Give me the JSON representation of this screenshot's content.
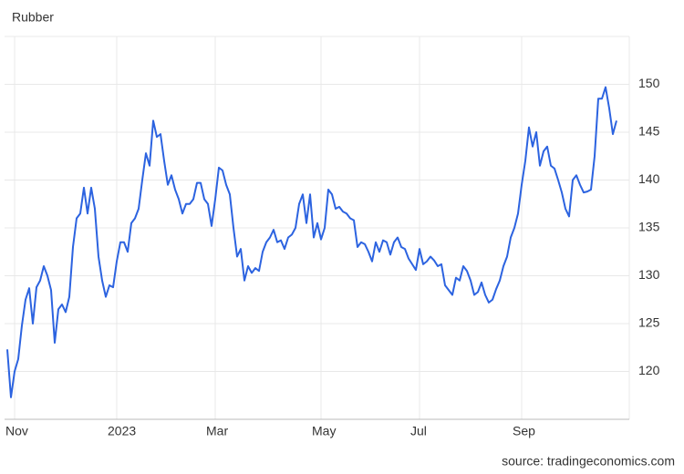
{
  "chart_data": {
    "type": "line",
    "title": "Rubber",
    "source": "source: tradingeconomics.com",
    "categories": [
      null,
      null,
      "Nov",
      null,
      null,
      null,
      null,
      null,
      null,
      null,
      null,
      null,
      null,
      null,
      null,
      null,
      null,
      null,
      null,
      null,
      null,
      null,
      null,
      null,
      null,
      null,
      null,
      null,
      null,
      null,
      "2023",
      null,
      null,
      null,
      null,
      null,
      null,
      null,
      null,
      null,
      null,
      null,
      null,
      null,
      null,
      null,
      null,
      null,
      null,
      null,
      null,
      null,
      null,
      null,
      null,
      null,
      null,
      "Mar",
      null,
      null,
      null,
      null,
      null,
      null,
      null,
      null,
      null,
      null,
      null,
      null,
      null,
      null,
      null,
      null,
      null,
      null,
      null,
      null,
      null,
      null,
      null,
      null,
      null,
      null,
      null,
      null,
      "May",
      null,
      null,
      null,
      null,
      null,
      null,
      null,
      null,
      null,
      null,
      null,
      null,
      null,
      null,
      null,
      null,
      null,
      null,
      null,
      null,
      null,
      null,
      null,
      null,
      null,
      null,
      "Jul",
      null,
      null,
      null,
      null,
      null,
      null,
      null,
      null,
      null,
      null,
      null,
      null,
      null,
      null,
      null,
      null,
      null,
      null,
      null,
      null,
      null,
      null,
      null,
      null,
      null,
      null,
      null,
      "Sep",
      null,
      null,
      null,
      null,
      null,
      null,
      null,
      null,
      null,
      null,
      null,
      null,
      null,
      null,
      null,
      null,
      null,
      null,
      null,
      null,
      null,
      null,
      null,
      null,
      null,
      null
    ],
    "series": [
      {
        "name": "Rubber",
        "color": "#2c63e0",
        "values": [
          122.3,
          117.3,
          120,
          121.3,
          124.8,
          127.5,
          128.7,
          125,
          128.8,
          129.5,
          131,
          130,
          128.5,
          123,
          126.5,
          127,
          126.2,
          127.8,
          133,
          136,
          136.5,
          139.2,
          136.5,
          139.2,
          137,
          132,
          129.5,
          127.8,
          129,
          128.8,
          131.5,
          133.5,
          133.5,
          132.5,
          135.5,
          136,
          137,
          140,
          142.8,
          141.5,
          146.2,
          144.5,
          144.8,
          142,
          139.5,
          140.5,
          139,
          138,
          136.5,
          137.5,
          137.5,
          138,
          139.7,
          139.7,
          138,
          137.5,
          135.2,
          138,
          141.3,
          141,
          139.5,
          138.5,
          135,
          132,
          132.8,
          129.5,
          131,
          130.3,
          130.8,
          130.5,
          132.5,
          133.5,
          134,
          134.8,
          133.5,
          133.7,
          132.8,
          134,
          134.3,
          135,
          137.5,
          138.5,
          135.5,
          138.5,
          134,
          135.5,
          133.8,
          135,
          139,
          138.5,
          137,
          137.2,
          136.7,
          136.5,
          136,
          135.8,
          133,
          133.5,
          133.3,
          132.5,
          131.5,
          133.5,
          132.5,
          133.7,
          133.5,
          132.2,
          133.5,
          134,
          133,
          132.8,
          131.8,
          131.2,
          130.6,
          132.8,
          131.2,
          131.5,
          132,
          131.6,
          131,
          131.2,
          129,
          128.5,
          128,
          129.8,
          129.5,
          131,
          130.5,
          129.5,
          128,
          128.3,
          129.3,
          128,
          127.2,
          127.5,
          128.6,
          129.5,
          131,
          132,
          134,
          135,
          136.5,
          139.5,
          142,
          145.5,
          143.5,
          145,
          141.5,
          143,
          143.5,
          141.5,
          141.2,
          140,
          138.7,
          137,
          136.2,
          140,
          140.5,
          139.5,
          138.7,
          138.8,
          139,
          142.5,
          148.5,
          148.5,
          149.7,
          147.5,
          144.8,
          146.2
        ]
      }
    ],
    "ylim": [
      115,
      155
    ],
    "yticks": [
      120,
      125,
      130,
      135,
      140,
      145,
      150
    ],
    "grid": true
  }
}
